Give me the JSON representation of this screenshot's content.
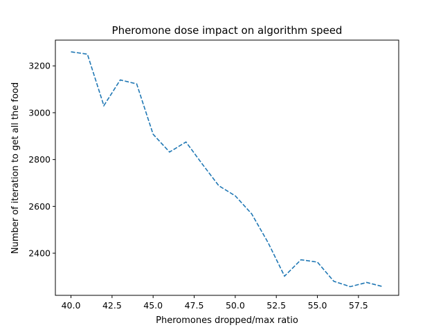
{
  "chart_data": {
    "type": "line",
    "title": "Pheromone dose impact on algorithm speed",
    "xlabel": "Pheromones dropped/max ratio",
    "ylabel": "Number of iteration to get all the food",
    "xlim": [
      39.05,
      59.95
    ],
    "ylim": [
      2220,
      3310
    ],
    "xticks": [
      40.0,
      42.5,
      45.0,
      47.5,
      50.0,
      52.5,
      55.0,
      57.5
    ],
    "xtick_labels": [
      "40.0",
      "42.5",
      "45.0",
      "47.5",
      "50.0",
      "52.5",
      "55.0",
      "57.5"
    ],
    "yticks": [
      2400,
      2600,
      2800,
      3000,
      3200
    ],
    "ytick_labels": [
      "2400",
      "2600",
      "2800",
      "3000",
      "3200"
    ],
    "grid": false,
    "series": [
      {
        "color": "#1f77b4",
        "linestyle": "dashed",
        "x": [
          40,
          41,
          42,
          43,
          44,
          45,
          46,
          47,
          48,
          49,
          50,
          51,
          52,
          53,
          54,
          55,
          56,
          57,
          58,
          59
        ],
        "y": [
          3260,
          3250,
          3030,
          3140,
          3123,
          2908,
          2832,
          2875,
          2780,
          2688,
          2645,
          2568,
          2445,
          2302,
          2372,
          2362,
          2280,
          2257,
          2275,
          2257
        ]
      }
    ]
  }
}
